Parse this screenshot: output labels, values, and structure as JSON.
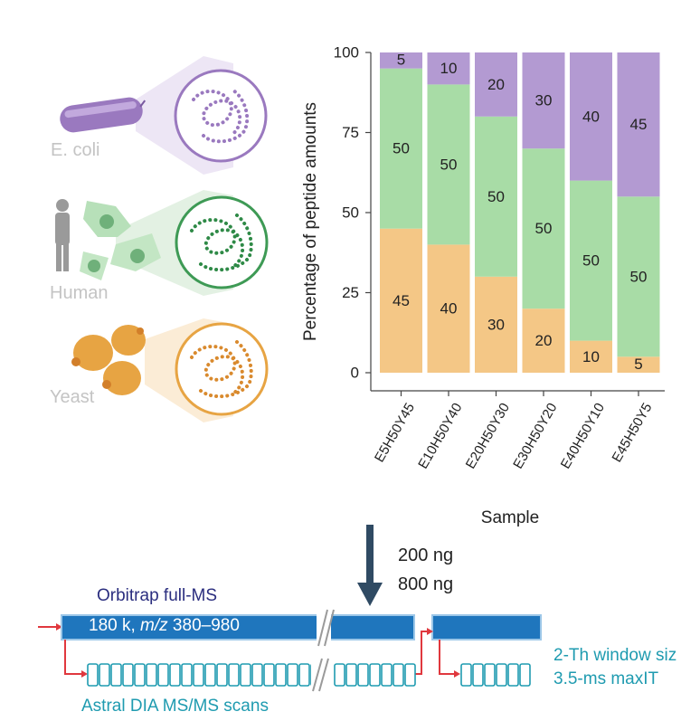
{
  "organisms": [
    {
      "label": "E. coli",
      "color": "#9a79bf"
    },
    {
      "label": "Human",
      "color": "#3e9a55"
    },
    {
      "label": "Yeast",
      "color": "#e7a443"
    }
  ],
  "chart_data": {
    "type": "bar",
    "stacked": true,
    "categories": [
      "E5H50Y45",
      "E10H50Y40",
      "E20H50Y30",
      "E30H50Y20",
      "E40H50Y10",
      "E45H50Y5"
    ],
    "series": [
      {
        "color": "#f4c786",
        "values": [
          45,
          40,
          30,
          20,
          10,
          5
        ]
      },
      {
        "color": "#a8dca6",
        "values": [
          50,
          50,
          50,
          50,
          50,
          50
        ]
      },
      {
        "color": "#b39ad2",
        "values": [
          5,
          10,
          20,
          30,
          40,
          45
        ]
      }
    ],
    "ylabel": "Percentage of peptide amounts",
    "xlabel": "Sample",
    "ylim": [
      0,
      100
    ],
    "yticks": [
      "0",
      "25",
      "50",
      "75",
      "100"
    ]
  },
  "amounts": [
    "200 ng",
    "800 ng"
  ],
  "ms_scheme": {
    "full_ms_title": "Orbitrap full-MS",
    "full_ms_setting_prefix": "180 k, ",
    "full_ms_setting_mz": "m/z",
    "full_ms_setting_range": " 380–980",
    "dia_label": "Astral DIA MS/MS scans",
    "window_label": "2-Th window siz",
    "maxit_label": "3.5-ms maxIT",
    "colors": {
      "full_ms": "#1f76bd",
      "dia": "#1f9bb0",
      "arrow": "#e0383e"
    }
  }
}
